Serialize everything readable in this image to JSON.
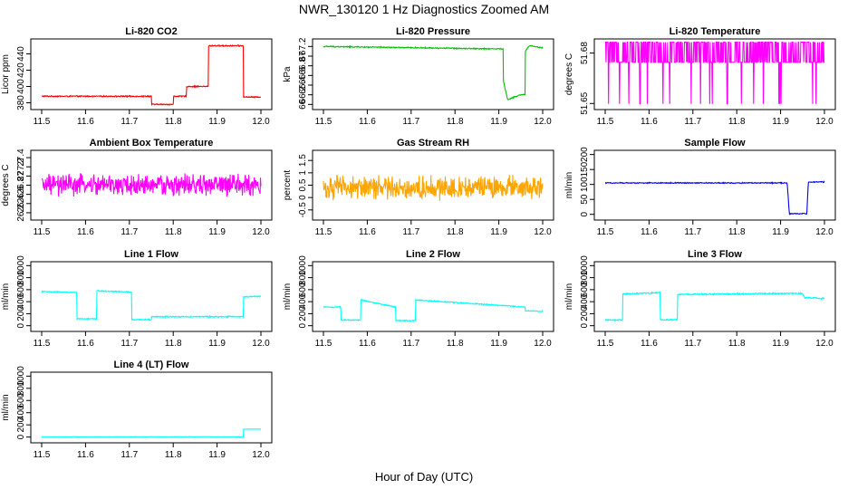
{
  "figure": {
    "title": "NWR_130120  1 Hz Diagnostics Zoomed AM",
    "xlabel": "Hour of Day (UTC)"
  },
  "chart_data": [
    {
      "type": "line",
      "title": "Li-820 CO2",
      "ylabel": "Licor ppm",
      "color": "#ff0000",
      "xlim": [
        11.5,
        12.0
      ],
      "xticks": [
        11.5,
        11.6,
        11.7,
        11.8,
        11.9,
        12.0
      ],
      "ylim": [
        375,
        455
      ],
      "yticks": [
        380,
        400,
        420,
        440
      ],
      "series": [
        {
          "x": [
            11.5,
            11.75,
            11.75,
            11.8,
            11.8,
            11.83,
            11.83,
            11.88,
            11.88,
            11.96,
            11.96,
            12.0
          ],
          "y": [
            388,
            388,
            378,
            378,
            388,
            388,
            400,
            400,
            450,
            450,
            387,
            387
          ],
          "noise": 0.6
        }
      ]
    },
    {
      "type": "line",
      "title": "Li-820 Pressure",
      "ylabel": "kPa",
      "color": "#00c000",
      "xlim": [
        11.5,
        12.0
      ],
      "xticks": [
        11.5,
        11.6,
        11.7,
        11.8,
        11.9,
        12.0
      ],
      "ylim": [
        65.95,
        67.3
      ],
      "yticks": [
        66.0,
        66.2,
        66.4,
        66.6,
        66.8,
        67.0,
        67.2
      ],
      "series": [
        {
          "x": [
            11.5,
            11.9,
            11.91,
            11.91,
            11.92,
            11.95,
            11.96,
            11.96,
            11.97,
            12.0
          ],
          "y": [
            67.2,
            67.15,
            67.15,
            66.5,
            66.1,
            66.2,
            66.2,
            67.1,
            67.22,
            67.17
          ],
          "noise": 0.01
        }
      ]
    },
    {
      "type": "line",
      "title": "Li-820 Temperature",
      "ylabel": "degrees C",
      "color": "#ff00ff",
      "xlim": [
        11.5,
        12.0
      ],
      "xticks": [
        11.5,
        11.6,
        11.7,
        11.8,
        11.9,
        12.0
      ],
      "ylim": [
        51.648,
        51.6868
      ],
      "yticks": [
        51.65,
        51.68
      ],
      "series": [
        {
          "x": [
            11.5,
            12.0
          ],
          "y": [
            51.6745,
            51.6745
          ],
          "toggle": [
            51.6745,
            51.6865
          ],
          "spikes_to": 51.6498
        }
      ]
    },
    {
      "type": "line",
      "title": "Ambient Box Temperature",
      "ylabel": "degrees C",
      "color": "#ff00ff",
      "xlim": [
        11.5,
        12.0
      ],
      "xticks": [
        11.5,
        11.6,
        11.7,
        11.8,
        11.9,
        12.0
      ],
      "ylim": [
        26.1,
        27.5
      ],
      "yticks": [
        26.2,
        26.4,
        26.6,
        26.8,
        27.0,
        27.2,
        27.4
      ],
      "series": [
        {
          "x": [
            11.5,
            12.0
          ],
          "y": [
            26.8,
            26.8
          ],
          "noise": 0.2
        }
      ]
    },
    {
      "type": "line",
      "title": "Gas Stream RH",
      "ylabel": "percent",
      "color": "#ffa500",
      "xlim": [
        11.5,
        12.0
      ],
      "xticks": [
        11.5,
        11.6,
        11.7,
        11.8,
        11.9,
        12.0
      ],
      "ylim": [
        -0.8,
        1.8
      ],
      "yticks": [
        -0.5,
        0.0,
        0.5,
        1.0,
        1.5
      ],
      "series": [
        {
          "x": [
            11.5,
            12.0
          ],
          "y": [
            0.4,
            0.4
          ],
          "noise": 0.4
        }
      ]
    },
    {
      "type": "line",
      "title": "Sample Flow",
      "ylabel": "ml/min",
      "color": "#0000ff",
      "xlim": [
        11.5,
        12.0
      ],
      "xticks": [
        11.5,
        11.6,
        11.7,
        11.8,
        11.9,
        12.0
      ],
      "ylim": [
        -10,
        205
      ],
      "yticks": [
        0,
        50,
        100,
        150,
        200
      ],
      "series": [
        {
          "x": [
            11.5,
            11.915,
            11.92,
            11.96,
            11.963,
            12.0
          ],
          "y": [
            105,
            105,
            2,
            2,
            108,
            108
          ],
          "noise": 1.5
        }
      ]
    },
    {
      "type": "line",
      "title": "Line 1 Flow",
      "ylabel": "ml/min",
      "color": "#00ffff",
      "xlim": [
        11.5,
        12.0
      ],
      "xticks": [
        11.5,
        11.6,
        11.7,
        11.8,
        11.9,
        12.0
      ],
      "ylim": [
        -50,
        1020
      ],
      "yticks": [
        0,
        200,
        400,
        600,
        800,
        1000
      ],
      "series": [
        {
          "x": [
            11.5,
            11.58,
            11.58,
            11.625,
            11.625,
            11.705,
            11.705,
            11.75,
            11.75,
            11.96,
            11.96,
            12.0
          ],
          "y": [
            570,
            550,
            115,
            115,
            580,
            560,
            100,
            100,
            150,
            150,
            480,
            490
          ],
          "noise": 8
        }
      ]
    },
    {
      "type": "line",
      "title": "Line 2 Flow",
      "ylabel": "ml/min",
      "color": "#00ffff",
      "xlim": [
        11.5,
        12.0
      ],
      "xticks": [
        11.5,
        11.6,
        11.7,
        11.8,
        11.9,
        12.0
      ],
      "ylim": [
        -50,
        1020
      ],
      "yticks": [
        0,
        200,
        400,
        600,
        800,
        1000
      ],
      "series": [
        {
          "x": [
            11.5,
            11.54,
            11.54,
            11.585,
            11.585,
            11.665,
            11.665,
            11.71,
            11.71,
            11.96,
            11.96,
            12.0
          ],
          "y": [
            310,
            310,
            95,
            95,
            430,
            310,
            85,
            85,
            430,
            310,
            250,
            240
          ],
          "noise": 8
        }
      ]
    },
    {
      "type": "line",
      "title": "Line 3 Flow",
      "ylabel": "ml/min",
      "color": "#00ffff",
      "xlim": [
        11.5,
        12.0
      ],
      "xticks": [
        11.5,
        11.6,
        11.7,
        11.8,
        11.9,
        12.0
      ],
      "ylim": [
        -50,
        1020
      ],
      "yticks": [
        0,
        200,
        400,
        600,
        800,
        1000
      ],
      "series": [
        {
          "x": [
            11.5,
            11.54,
            11.54,
            11.625,
            11.625,
            11.665,
            11.665,
            11.95,
            11.955,
            12.0
          ],
          "y": [
            95,
            95,
            530,
            550,
            100,
            100,
            520,
            540,
            470,
            450
          ],
          "noise": 10
        }
      ]
    },
    {
      "type": "line",
      "title": "Line 4 (LT) Flow",
      "ylabel": "ml/min",
      "color": "#00ffff",
      "xlim": [
        11.5,
        12.0
      ],
      "xticks": [
        11.5,
        11.6,
        11.7,
        11.8,
        11.9,
        12.0
      ],
      "ylim": [
        -50,
        1020
      ],
      "yticks": [
        0,
        200,
        400,
        600,
        800,
        1000
      ],
      "series": [
        {
          "x": [
            11.5,
            11.96,
            11.96,
            12.0
          ],
          "y": [
            5,
            5,
            130,
            130
          ],
          "noise": 2
        }
      ]
    }
  ]
}
